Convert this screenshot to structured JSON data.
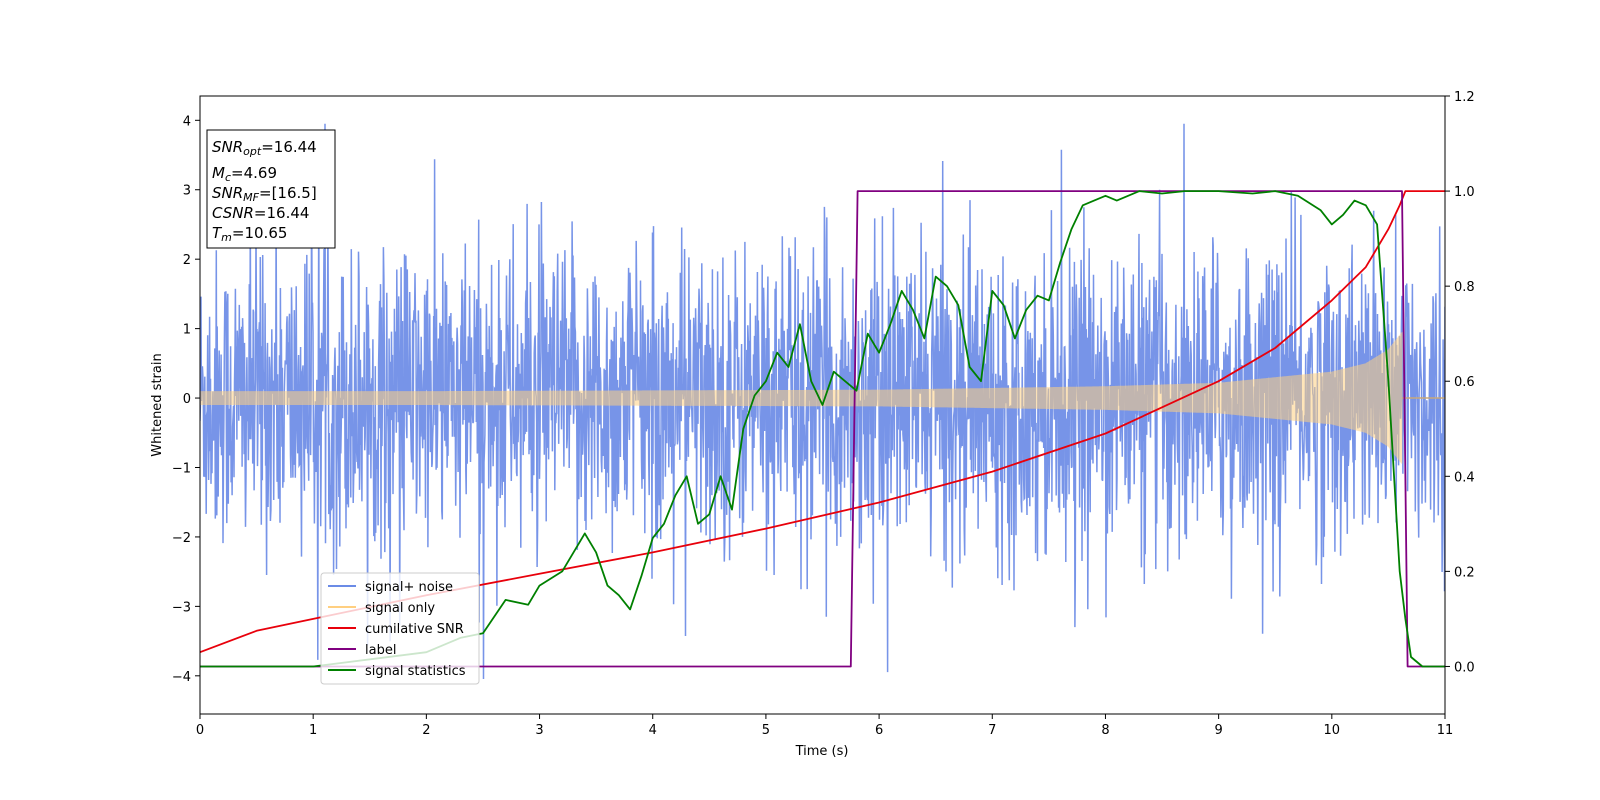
{
  "chart_data": {
    "type": "line",
    "xlabel": "Time (s)",
    "ylabel": "Whitened strain",
    "xlim": [
      0,
      11
    ],
    "ylim_left": [
      -4.55,
      4.35
    ],
    "ylim_right": [
      -0.1,
      1.2
    ],
    "xticks": [
      "0",
      "1",
      "2",
      "3",
      "4",
      "5",
      "6",
      "7",
      "8",
      "9",
      "10",
      "11"
    ],
    "yticks_left": [
      "−4",
      "−3",
      "−2",
      "−1",
      "0",
      "1",
      "2",
      "3",
      "4"
    ],
    "yticks_right": [
      "0.0",
      "0.2",
      "0.4",
      "0.6",
      "0.8",
      "1.0",
      "1.2"
    ],
    "grid": false,
    "legend_position": "lower-left",
    "series": [
      {
        "name": "signal+ noise",
        "axis": "left",
        "color": "#6b8be6",
        "description_values": "noise band approximately ±2.2 with spikes to ±4"
      },
      {
        "name": "signal only",
        "axis": "left",
        "color": "#ffcf80",
        "amplitude_envelope": {
          "x": [
            0,
            2,
            4,
            6,
            8,
            9,
            10,
            10.3,
            10.5,
            10.62
          ],
          "y": [
            0.1,
            0.1,
            0.11,
            0.12,
            0.17,
            0.22,
            0.38,
            0.5,
            0.7,
            0.95
          ]
        }
      },
      {
        "name": "cumilative SNR",
        "axis": "right",
        "color": "#e8000b",
        "x": [
          0,
          0.5,
          1,
          2,
          3,
          4,
          5,
          6,
          7,
          8,
          9,
          9.5,
          10,
          10.3,
          10.5,
          10.6,
          10.65,
          11
        ],
        "y": [
          0.03,
          0.075,
          0.1,
          0.15,
          0.195,
          0.24,
          0.29,
          0.345,
          0.41,
          0.49,
          0.6,
          0.67,
          0.77,
          0.84,
          0.92,
          0.97,
          1.0,
          1.0
        ]
      },
      {
        "name": "label",
        "axis": "right",
        "color": "#800080",
        "x": [
          0,
          5.75,
          5.81,
          10.62,
          10.67,
          11
        ],
        "y": [
          0,
          0,
          1,
          1,
          0,
          0
        ]
      },
      {
        "name": "signal statistics",
        "axis": "right",
        "color": "#008000",
        "x": [
          0,
          1,
          2,
          2.3,
          2.5,
          2.7,
          2.9,
          3.0,
          3.2,
          3.4,
          3.5,
          3.6,
          3.7,
          3.8,
          3.9,
          4.0,
          4.1,
          4.2,
          4.3,
          4.4,
          4.5,
          4.6,
          4.7,
          4.8,
          4.9,
          5.0,
          5.1,
          5.2,
          5.3,
          5.4,
          5.5,
          5.6,
          5.7,
          5.8,
          5.9,
          6.0,
          6.1,
          6.2,
          6.3,
          6.4,
          6.5,
          6.6,
          6.7,
          6.8,
          6.9,
          7.0,
          7.1,
          7.2,
          7.3,
          7.4,
          7.5,
          7.6,
          7.7,
          7.8,
          7.9,
          8.0,
          8.1,
          8.2,
          8.3,
          8.5,
          8.7,
          9.0,
          9.3,
          9.5,
          9.7,
          9.9,
          10.0,
          10.1,
          10.2,
          10.3,
          10.4,
          10.5,
          10.6,
          10.65,
          10.7,
          10.8,
          11
        ],
        "y": [
          0.0,
          0.0,
          0.03,
          0.06,
          0.07,
          0.14,
          0.13,
          0.17,
          0.2,
          0.28,
          0.24,
          0.17,
          0.15,
          0.12,
          0.19,
          0.27,
          0.3,
          0.36,
          0.4,
          0.3,
          0.32,
          0.4,
          0.33,
          0.5,
          0.57,
          0.6,
          0.66,
          0.63,
          0.72,
          0.6,
          0.55,
          0.62,
          0.6,
          0.58,
          0.7,
          0.66,
          0.72,
          0.79,
          0.75,
          0.69,
          0.82,
          0.8,
          0.76,
          0.63,
          0.6,
          0.79,
          0.76,
          0.69,
          0.75,
          0.78,
          0.77,
          0.85,
          0.92,
          0.97,
          0.98,
          0.99,
          0.98,
          0.99,
          1.0,
          0.995,
          1.0,
          1.0,
          0.995,
          1.0,
          0.99,
          0.96,
          0.93,
          0.95,
          0.98,
          0.97,
          0.93,
          0.6,
          0.2,
          0.1,
          0.02,
          0.0,
          0.0
        ]
      }
    ],
    "annotations": [
      {
        "main": "SNR",
        "sub": "opt",
        "rest": "=16.44"
      },
      {
        "main": "M",
        "sub": "c",
        "rest": "=4.69"
      },
      {
        "main": "SNR",
        "sub": "MF",
        "rest": "=[16.5]"
      },
      {
        "main": "CSNR",
        "sub": "",
        "rest": "=16.44"
      },
      {
        "main": "T",
        "sub": "m",
        "rest": "=10.65"
      }
    ]
  }
}
